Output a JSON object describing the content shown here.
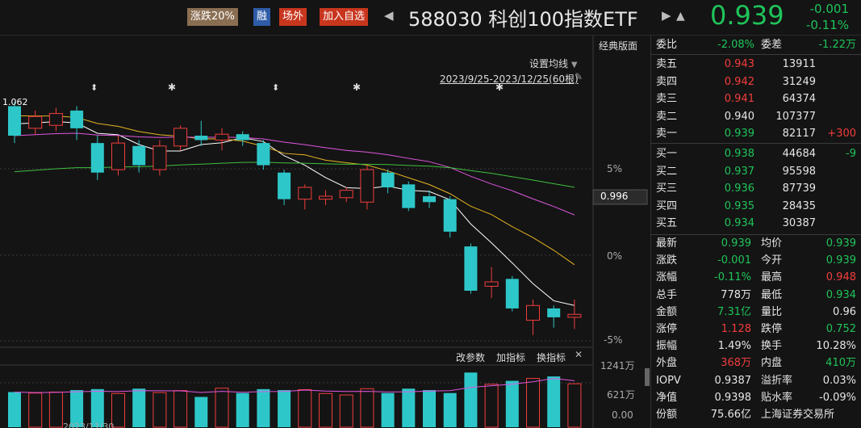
{
  "header": {
    "tag_zd": "涨跌20%",
    "tag_rong": "融",
    "tag_cw": "场外",
    "tag_add": "加入自选",
    "title": "588030 科创100指数ETF",
    "price": "0.939",
    "change": "-0.001",
    "change_pct": "-0.11%"
  },
  "chart": {
    "classic_label": "经典版面",
    "ma_settings": "设置均线",
    "range": "2023/9/25-2023/12/25(60根)",
    "high_label": "1.062",
    "right_axis": [
      "5%",
      "0%",
      "-5%"
    ],
    "current_price_tag": "0.996",
    "vol_toolbar": [
      "改参数",
      "加指标",
      "换指标"
    ],
    "vol_axis": [
      "1241万",
      "621万",
      "0.00"
    ],
    "bottom_date": "2023/11/30"
  },
  "chart_data": {
    "type": "candlestick",
    "candles": [
      {
        "o": 1.055,
        "c": 1.035,
        "h": 1.058,
        "l": 1.03
      },
      {
        "o": 1.04,
        "c": 1.048,
        "h": 1.052,
        "l": 1.036
      },
      {
        "o": 1.042,
        "c": 1.05,
        "h": 1.054,
        "l": 1.038
      },
      {
        "o": 1.052,
        "c": 1.04,
        "h": 1.055,
        "l": 1.032
      },
      {
        "o": 1.03,
        "c": 1.01,
        "h": 1.035,
        "l": 1.005
      },
      {
        "o": 1.012,
        "c": 1.03,
        "h": 1.035,
        "l": 1.008
      },
      {
        "o": 1.028,
        "c": 1.015,
        "h": 1.032,
        "l": 1.01
      },
      {
        "o": 1.012,
        "c": 1.028,
        "h": 1.032,
        "l": 1.008
      },
      {
        "o": 1.028,
        "c": 1.04,
        "h": 1.042,
        "l": 1.025
      },
      {
        "o": 1.035,
        "c": 1.032,
        "h": 1.045,
        "l": 1.028
      },
      {
        "o": 1.032,
        "c": 1.036,
        "h": 1.04,
        "l": 1.025
      },
      {
        "o": 1.036,
        "c": 1.032,
        "h": 1.038,
        "l": 1.028
      },
      {
        "o": 1.03,
        "c": 1.015,
        "h": 1.032,
        "l": 1.012
      },
      {
        "o": 1.01,
        "c": 0.992,
        "h": 1.012,
        "l": 0.988
      },
      {
        "o": 0.992,
        "c": 1.0,
        "h": 1.002,
        "l": 0.985
      },
      {
        "o": 0.992,
        "c": 0.994,
        "h": 0.998,
        "l": 0.988
      },
      {
        "o": 0.993,
        "c": 0.998,
        "h": 1.0,
        "l": 0.99
      },
      {
        "o": 0.99,
        "c": 1.012,
        "h": 1.015,
        "l": 0.985
      },
      {
        "o": 1.01,
        "c": 1.0,
        "h": 1.012,
        "l": 0.996
      },
      {
        "o": 1.002,
        "c": 0.986,
        "h": 1.004,
        "l": 0.984
      },
      {
        "o": 0.994,
        "c": 0.99,
        "h": 0.998,
        "l": 0.986
      },
      {
        "o": 0.992,
        "c": 0.97,
        "h": 0.994,
        "l": 0.966
      },
      {
        "o": 0.96,
        "c": 0.93,
        "h": 0.962,
        "l": 0.928
      },
      {
        "o": 0.933,
        "c": 0.936,
        "h": 0.946,
        "l": 0.925
      },
      {
        "o": 0.938,
        "c": 0.918,
        "h": 0.94,
        "l": 0.916
      },
      {
        "o": 0.91,
        "c": 0.92,
        "h": 0.924,
        "l": 0.9
      },
      {
        "o": 0.918,
        "c": 0.912,
        "h": 0.92,
        "l": 0.905
      },
      {
        "o": 0.912,
        "c": 0.914,
        "h": 0.924,
        "l": 0.904
      }
    ],
    "volumes": [
      720,
      700,
      720,
      760,
      780,
      690,
      790,
      710,
      750,
      620,
      800,
      700,
      780,
      760,
      770,
      690,
      660,
      790,
      700,
      790,
      760,
      700,
      1120,
      880,
      950,
      1000,
      1040,
      890
    ],
    "ylim": [
      0.895,
      1.07
    ],
    "vol_max": 1241
  },
  "orderbook": {
    "weibi_label": "委比",
    "weibi": "-2.08%",
    "weicha_label": "委差",
    "weicha": "-1.22万",
    "asks": [
      {
        "label": "卖五",
        "price": "0.943",
        "vol": "13911",
        "delta": ""
      },
      {
        "label": "卖四",
        "price": "0.942",
        "vol": "31249",
        "delta": ""
      },
      {
        "label": "卖三",
        "price": "0.941",
        "vol": "64374",
        "delta": ""
      },
      {
        "label": "卖二",
        "price": "0.940",
        "vol": "107377",
        "delta": ""
      },
      {
        "label": "卖一",
        "price": "0.939",
        "vol": "82117",
        "delta": "+300"
      }
    ],
    "bids": [
      {
        "label": "买一",
        "price": "0.938",
        "vol": "44684",
        "delta": "-9"
      },
      {
        "label": "买二",
        "price": "0.937",
        "vol": "95598",
        "delta": ""
      },
      {
        "label": "买三",
        "price": "0.936",
        "vol": "87739",
        "delta": ""
      },
      {
        "label": "买四",
        "price": "0.935",
        "vol": "28435",
        "delta": ""
      },
      {
        "label": "买五",
        "price": "0.934",
        "vol": "30387",
        "delta": ""
      }
    ]
  },
  "stats": [
    {
      "l1": "最新",
      "v1": "0.939",
      "c1": "green",
      "l2": "均价",
      "v2": "0.939",
      "c2": "green"
    },
    {
      "l1": "涨跌",
      "v1": "-0.001",
      "c1": "green",
      "l2": "今开",
      "v2": "0.939",
      "c2": "green"
    },
    {
      "l1": "涨幅",
      "v1": "-0.11%",
      "c1": "green",
      "l2": "最高",
      "v2": "0.948",
      "c2": "red"
    },
    {
      "l1": "总手",
      "v1": "778万",
      "c1": "white",
      "l2": "最低",
      "v2": "0.934",
      "c2": "green"
    },
    {
      "l1": "金额",
      "v1": "7.31亿",
      "c1": "green",
      "l2": "量比",
      "v2": "0.96",
      "c2": "white"
    },
    {
      "l1": "涨停",
      "v1": "1.128",
      "c1": "red",
      "l2": "跌停",
      "v2": "0.752",
      "c2": "green"
    },
    {
      "l1": "振幅",
      "v1": "1.49%",
      "c1": "white",
      "l2": "换手",
      "v2": "10.28%",
      "c2": "white"
    },
    {
      "l1": "外盘",
      "v1": "368万",
      "c1": "red",
      "l2": "内盘",
      "v2": "410万",
      "c2": "green"
    },
    {
      "l1": "IOPV",
      "v1": "0.9387",
      "c1": "white",
      "l2": "溢折率",
      "v2": "0.03%",
      "c2": "white"
    },
    {
      "l1": "净值",
      "v1": "0.9398",
      "c1": "white",
      "l2": "贴水率",
      "v2": "-0.09%",
      "c2": "white"
    },
    {
      "l1": "份额",
      "v1": "75.66亿",
      "c1": "white",
      "l2": "上海证券交易所",
      "v2": "",
      "c2": "white"
    }
  ],
  "colors": {
    "up": "#f23d3d",
    "down": "#2ec7c9",
    "ma5": "#ffffff",
    "ma10": "#e6b422",
    "ma20": "#e056e0",
    "ma60": "#3fbf3f"
  }
}
